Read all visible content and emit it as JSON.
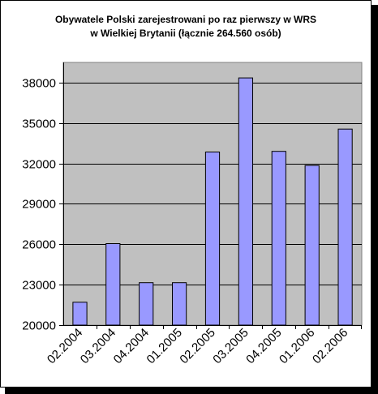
{
  "chart_data": {
    "type": "bar",
    "title_lines": [
      "Obywatele Polski zarejestrowani po raz pierwszy w WRS",
      "w Wielkiej Brytanii (łącznie 264.560 osób)"
    ],
    "categories": [
      "02.2004",
      "03.2004",
      "04.2004",
      "01.2005",
      "02.2005",
      "03.2005",
      "04.2005",
      "01.2006",
      "02.2006"
    ],
    "values": [
      21700,
      26050,
      23150,
      23150,
      32850,
      38350,
      32900,
      31850,
      34550
    ],
    "ylim": [
      20000,
      39500
    ],
    "yticks": [
      20000,
      23000,
      26000,
      29000,
      32000,
      35000,
      38000
    ],
    "grid": true,
    "legend": "none",
    "colors": {
      "bar_fill": "#9999ff",
      "bar_stroke": "#000000",
      "plot_background": "#c0c0c0",
      "gridline": "#000000"
    }
  }
}
